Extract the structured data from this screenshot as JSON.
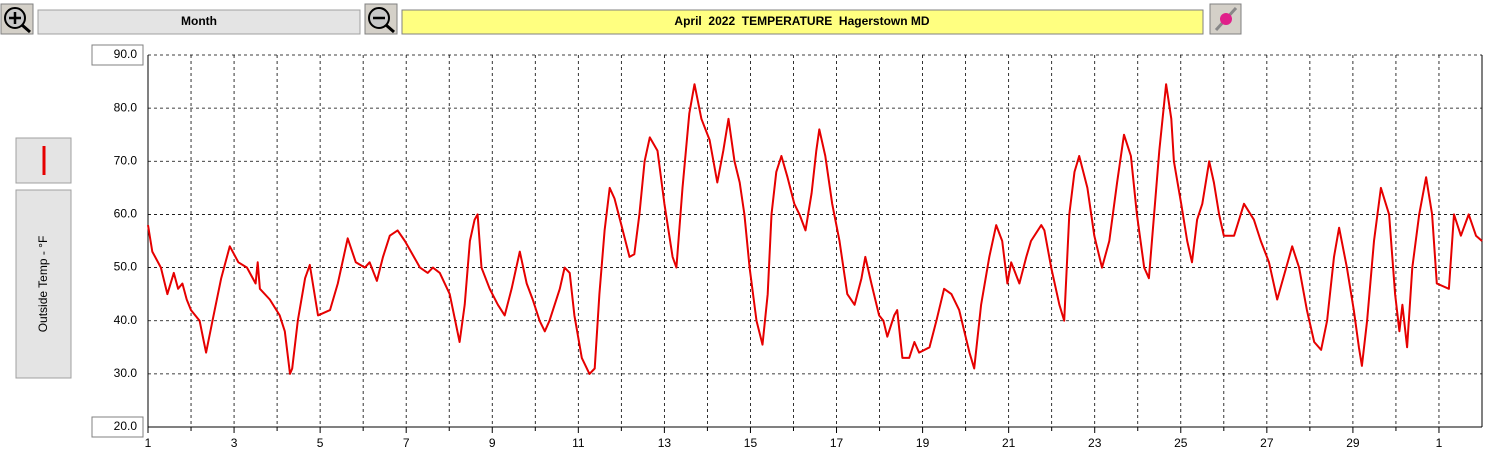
{
  "chart_data": {
    "type": "line",
    "title": "April  2022  TEMPERATURE  Hagerstown MD",
    "period": "Month",
    "ylabel": "Outside Temp - °F",
    "xlim": [
      1,
      32
    ],
    "xticks": [
      1,
      3,
      5,
      7,
      9,
      11,
      13,
      15,
      17,
      19,
      21,
      23,
      25,
      27,
      29,
      {
        "value": 31,
        "label": "1"
      }
    ],
    "x_minor_ticks": [
      2,
      4,
      6,
      8,
      10,
      12,
      14,
      16,
      18,
      20,
      22,
      24,
      26,
      28,
      30
    ],
    "ylim": [
      20,
      90
    ],
    "yticks": [
      {
        "value": 20,
        "label": "20.0"
      },
      {
        "value": 30,
        "label": "30.0"
      },
      {
        "value": 40,
        "label": "40.0"
      },
      {
        "value": 50,
        "label": "50.0"
      },
      {
        "value": 60,
        "label": "60.0"
      },
      {
        "value": 70,
        "label": "70.0"
      },
      {
        "value": 80,
        "label": "80.0"
      },
      {
        "value": 90,
        "label": "90.0"
      }
    ],
    "grid": true,
    "x": [
      1.0,
      1.1,
      1.3,
      1.45,
      1.6,
      1.7,
      1.8,
      1.9,
      2.0,
      2.2,
      2.3,
      2.35,
      2.5,
      2.7,
      2.9,
      3.1,
      3.3,
      3.5,
      3.55,
      3.6,
      3.83,
      4.06,
      4.18,
      4.3,
      4.35,
      4.48,
      4.65,
      4.76,
      4.95,
      5.23,
      5.41,
      5.64,
      5.83,
      6.04,
      6.15,
      6.32,
      6.46,
      6.62,
      6.8,
      6.97,
      7.32,
      7.5,
      7.62,
      7.78,
      8.01,
      8.24,
      8.36,
      8.48,
      8.59,
      8.66,
      8.75,
      8.94,
      9.13,
      9.29,
      9.45,
      9.64,
      9.8,
      9.94,
      10.1,
      10.22,
      10.33,
      10.57,
      10.68,
      10.8,
      10.91,
      11.08,
      11.26,
      11.38,
      11.49,
      11.61,
      11.73,
      11.84,
      12.0,
      12.19,
      12.3,
      12.42,
      12.54,
      12.66,
      12.84,
      13.0,
      13.19,
      13.28,
      13.42,
      13.58,
      13.7,
      13.86,
      14.05,
      14.23,
      14.37,
      14.49,
      14.63,
      14.75,
      14.86,
      14.98,
      15.14,
      15.28,
      15.4,
      15.49,
      15.6,
      15.72,
      15.86,
      16.02,
      16.14,
      16.28,
      16.42,
      16.53,
      16.6,
      16.74,
      16.9,
      17.07,
      17.25,
      17.42,
      17.58,
      17.67,
      17.81,
      17.99,
      18.09,
      18.18,
      18.34,
      18.41,
      18.53,
      18.69,
      18.81,
      18.92,
      19.16,
      19.32,
      19.5,
      19.67,
      19.85,
      19.97,
      20.09,
      20.2,
      20.36,
      20.55,
      20.71,
      20.85,
      20.97,
      21.06,
      21.25,
      21.41,
      21.52,
      21.76,
      21.83,
      21.99,
      22.18,
      22.29,
      22.41,
      22.53,
      22.64,
      22.83,
      22.99,
      23.17,
      23.34,
      23.52,
      23.68,
      23.84,
      23.98,
      24.15,
      24.26,
      24.38,
      24.5,
      24.66,
      24.78,
      24.84,
      25.01,
      25.15,
      25.26,
      25.38,
      25.5,
      25.66,
      25.77,
      25.89,
      26.0,
      26.24,
      26.47,
      26.7,
      26.86,
      27.05,
      27.24,
      27.45,
      27.59,
      27.75,
      27.93,
      28.1,
      28.26,
      28.4,
      28.56,
      28.68,
      28.86,
      29.02,
      29.14,
      29.21,
      29.33,
      29.49,
      29.65,
      29.84,
      29.98,
      30.08,
      30.15,
      30.26,
      30.38,
      30.54,
      30.7,
      30.84,
      30.95,
      31.23,
      31.35,
      31.51,
      31.69,
      31.86,
      32.0
    ],
    "series": [
      {
        "name": "Outside Temp - °F",
        "color": "#e60000",
        "values": [
          58,
          53,
          50,
          45,
          49,
          46,
          47,
          44,
          42,
          40,
          36,
          34,
          40,
          48,
          54,
          51,
          50,
          47,
          51,
          46,
          44,
          41,
          38,
          30,
          31,
          40,
          48,
          50.5,
          41,
          42,
          47,
          55.5,
          51,
          50,
          51,
          47.5,
          52,
          56,
          57,
          55,
          50,
          49,
          50,
          49,
          45,
          36,
          43,
          55,
          59,
          60,
          50,
          46,
          43,
          41,
          46,
          53,
          47,
          44,
          40,
          38,
          40,
          46,
          50,
          49,
          41,
          33,
          30,
          31,
          45,
          57,
          65,
          63,
          58,
          52,
          52.5,
          60,
          70,
          74.5,
          72,
          62,
          52,
          50,
          65,
          79,
          84.5,
          78,
          74,
          66,
          72,
          78,
          70,
          66,
          60,
          50,
          40,
          35.5,
          45,
          60,
          68,
          71,
          67,
          62,
          60,
          57,
          64,
          72,
          76,
          71,
          62,
          55,
          45,
          43,
          48,
          52,
          47,
          41,
          40,
          37,
          41,
          42,
          33,
          33,
          36,
          34,
          35,
          40,
          46,
          45,
          42,
          38,
          34,
          31,
          43,
          52,
          58,
          55,
          47,
          51,
          47,
          52,
          55,
          58,
          57,
          50,
          43,
          40,
          60,
          68,
          71,
          65,
          56,
          50,
          55,
          66,
          75,
          71,
          60,
          50,
          48,
          60,
          72,
          84.5,
          78,
          70,
          62,
          55,
          51,
          59,
          62,
          70,
          66,
          60,
          56,
          56,
          62,
          59,
          55,
          51,
          44,
          50,
          54,
          50,
          42,
          36,
          34.5,
          40,
          52,
          57.5,
          50,
          42,
          35,
          31.5,
          40,
          55,
          65,
          60,
          45,
          38,
          43,
          35,
          50,
          60,
          67,
          60,
          47,
          46,
          60,
          56,
          60,
          56,
          55
        ]
      }
    ]
  }
}
